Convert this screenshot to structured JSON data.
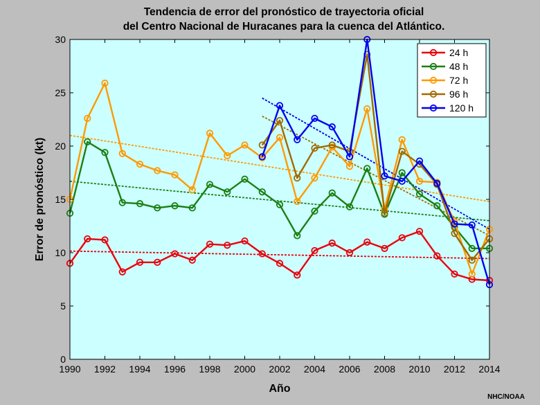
{
  "chart_data": {
    "type": "line",
    "title_lines": [
      "Tendencia de error del pronóstico de trayectoria oficial",
      "del Centro Nacional de Huracanes para la cuenca del Atlántico."
    ],
    "xlabel": "Año",
    "ylabel": "Error de pronóstico (kt)",
    "xlim": [
      1990,
      2014
    ],
    "ylim": [
      0,
      30
    ],
    "xticks": [
      "1990",
      "1992",
      "1994",
      "1996",
      "1998",
      "2000",
      "2002",
      "2004",
      "2006",
      "2008",
      "2010",
      "2012",
      "2014"
    ],
    "yticks": [
      "0",
      "5",
      "10",
      "15",
      "20",
      "25",
      "30"
    ],
    "grid": false,
    "legend_position": "top-right",
    "background_color": "#ccffff",
    "series": [
      {
        "name": "24 h",
        "color": "#e8000b",
        "x": [
          1990,
          1991,
          1992,
          1993,
          1994,
          1995,
          1996,
          1997,
          1998,
          1999,
          2000,
          2001,
          2002,
          2003,
          2004,
          2005,
          2006,
          2007,
          2008,
          2009,
          2010,
          2011,
          2012,
          2013,
          2014
        ],
        "values": [
          9.0,
          11.3,
          11.2,
          8.2,
          9.1,
          9.1,
          9.9,
          9.3,
          10.8,
          10.7,
          11.1,
          9.9,
          9.0,
          7.9,
          10.2,
          10.9,
          10.0,
          11.0,
          10.4,
          11.4,
          12.0,
          9.7,
          8.0,
          7.5,
          7.4
        ],
        "trend": [
          [
            1990,
            10.15
          ],
          [
            2014,
            9.45
          ]
        ]
      },
      {
        "name": "48 h",
        "color": "#1a7f12",
        "x": [
          1990,
          1991,
          1992,
          1993,
          1994,
          1995,
          1996,
          1997,
          1998,
          1999,
          2000,
          2001,
          2002,
          2003,
          2004,
          2005,
          2006,
          2007,
          2008,
          2009,
          2010,
          2011,
          2012,
          2013,
          2014
        ],
        "values": [
          13.7,
          20.4,
          19.4,
          14.7,
          14.6,
          14.2,
          14.4,
          14.2,
          16.4,
          15.7,
          16.9,
          15.7,
          14.5,
          11.6,
          13.9,
          15.6,
          14.3,
          17.9,
          13.6,
          17.5,
          15.5,
          14.4,
          12.4,
          10.4,
          10.4
        ],
        "trend": [
          [
            1990,
            16.7
          ],
          [
            2014,
            13.0
          ]
        ]
      },
      {
        "name": "72 h",
        "color": "#ff9900",
        "x": [
          1990,
          1991,
          1992,
          1993,
          1994,
          1995,
          1996,
          1997,
          1998,
          1999,
          2000,
          2001,
          2002,
          2003,
          2004,
          2005,
          2006,
          2007,
          2008,
          2009,
          2010,
          2011,
          2012,
          2013,
          2014
        ],
        "values": [
          15.0,
          22.6,
          25.9,
          19.3,
          18.3,
          17.7,
          17.3,
          15.9,
          21.2,
          19.1,
          20.1,
          18.9,
          20.8,
          14.8,
          17.0,
          19.9,
          18.1,
          23.5,
          14.1,
          20.6,
          16.7,
          16.6,
          12.9,
          8.0,
          12.2
        ],
        "trend": [
          [
            1990,
            21.0
          ],
          [
            2014,
            14.8
          ]
        ]
      },
      {
        "name": "96 h",
        "color": "#a06a00",
        "x": [
          2001,
          2002,
          2003,
          2004,
          2005,
          2006,
          2007,
          2008,
          2009,
          2010,
          2011,
          2012,
          2013,
          2014
        ],
        "values": [
          20.1,
          22.4,
          17.0,
          19.8,
          20.1,
          19.5,
          28.6,
          13.7,
          19.5,
          18.3,
          16.4,
          11.8,
          9.3,
          11.3
        ],
        "trend": [
          [
            2001,
            22.8
          ],
          [
            2014,
            11.6
          ]
        ]
      },
      {
        "name": "120 h",
        "color": "#0000ee",
        "x": [
          2001,
          2002,
          2003,
          2004,
          2005,
          2006,
          2007,
          2008,
          2009,
          2010,
          2011,
          2012,
          2013,
          2014
        ],
        "values": [
          19.0,
          23.8,
          20.6,
          22.6,
          21.8,
          19.0,
          30.0,
          17.2,
          16.7,
          18.6,
          16.5,
          12.7,
          12.6,
          7.0
        ],
        "trend": [
          [
            2001,
            24.5
          ],
          [
            2014,
            12.2
          ]
        ]
      }
    ],
    "credit": "NHC/NOAA"
  }
}
